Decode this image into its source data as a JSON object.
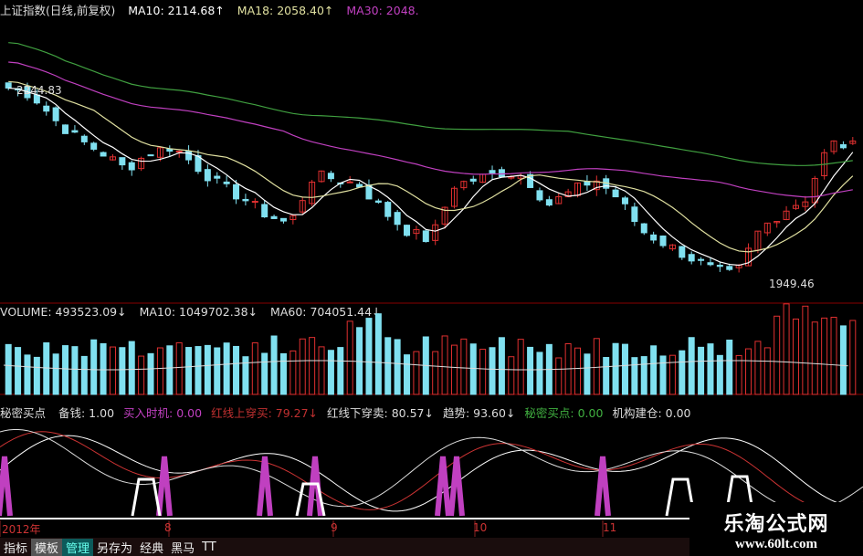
{
  "price_header": {
    "title": "上证指数(日线,前复权)",
    "ma10": "MA10: 2114.68↑",
    "ma18": "MA18: 2058.40↑",
    "ma30": "MA30: 2048."
  },
  "annotations": {
    "high": "2244.83",
    "low": "1949.46"
  },
  "volume_header": {
    "volume": "VOLUME: 493523.09↓",
    "ma10": "MA10: 1049702.38↓",
    "ma60": "MA60: 704051.44↓"
  },
  "indicator_header": {
    "name": "秘密买点",
    "items": [
      {
        "label": "备钱: 1.00",
        "color": "#dddddd"
      },
      {
        "label": "买入时机: 0.00",
        "color": "#c040c0"
      },
      {
        "label": "红线上穿买: 79.27↓",
        "color": "#c03030"
      },
      {
        "label": "红线下穿卖: 80.57↓",
        "color": "#dddddd"
      },
      {
        "label": "趋势: 93.60↓",
        "color": "#dddddd"
      },
      {
        "label": "秘密买点: 0.00",
        "color": "#40b040"
      },
      {
        "label": "机构建仓: 0.00",
        "color": "#dddddd"
      }
    ]
  },
  "date_axis": [
    "2012年",
    "8",
    "9",
    "10",
    "11"
  ],
  "bottom_tabs": [
    "指标",
    "模板",
    "管理",
    "另存为",
    "经典",
    "黑马",
    "TT"
  ],
  "watermark": {
    "name": "乐淘公式网",
    "url": "www.60lt.com"
  },
  "colors": {
    "up": "#e03030",
    "down": "#80e0f0",
    "ma10": "#ffffff",
    "ma18": "#e0e0a0",
    "ma30": "#c040c0",
    "ma60": "#40a040"
  },
  "chart_data": {
    "type": "candlestick",
    "key_closes": [
      2250,
      2240,
      2200,
      2170,
      2150,
      2125,
      2150,
      2160,
      2130,
      2100,
      2080,
      2055,
      2040,
      2115,
      2110,
      2100,
      2060,
      2030,
      2015,
      2100,
      2110,
      2120,
      2115,
      2070,
      2090,
      2110,
      2080,
      2030,
      2010,
      1990,
      1970,
      1960,
      2030,
      2060,
      2080,
      2165,
      2160
    ]
  }
}
